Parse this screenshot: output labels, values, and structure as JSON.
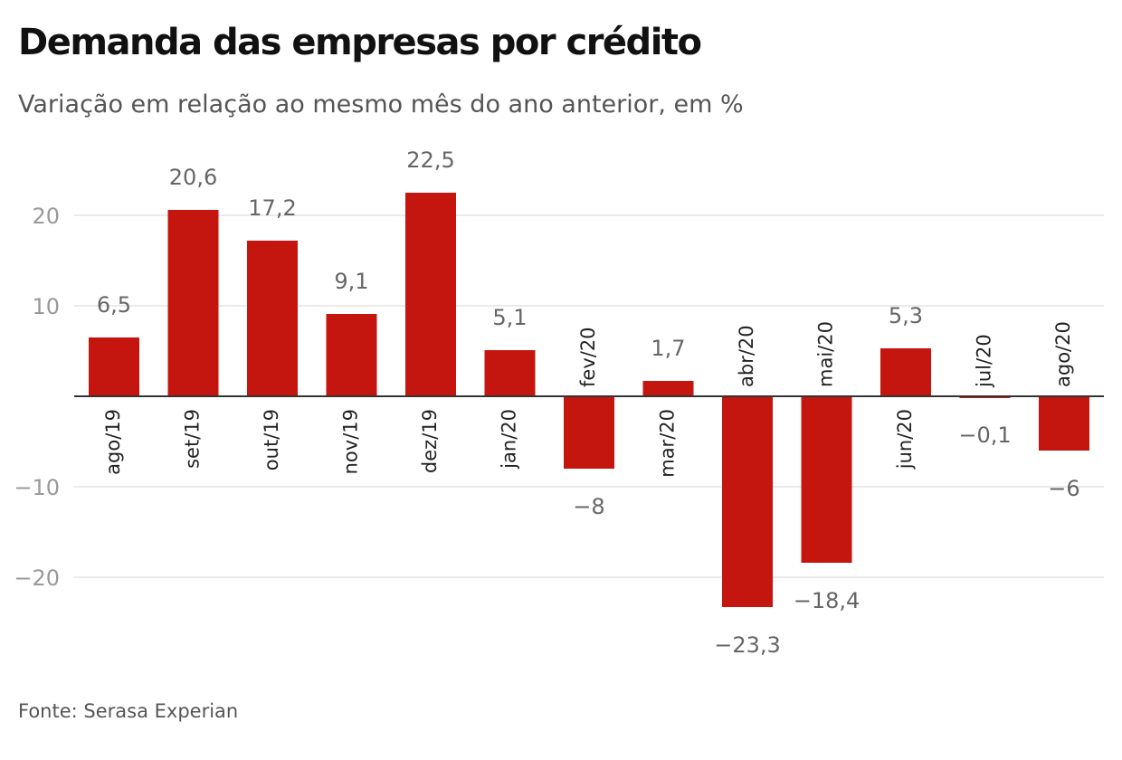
{
  "title": "Demanda das empresas por crédito",
  "subtitle": "Variação em relação ao mesmo mês do ano anterior, em %",
  "source": "Fonte: Serasa Experian",
  "colors": {
    "bar": "#c4160f",
    "grid": "#e3e3e3",
    "zero_line": "#333333"
  },
  "chart_data": {
    "type": "bar",
    "categories": [
      "ago/19",
      "set/19",
      "out/19",
      "nov/19",
      "dez/19",
      "jan/20",
      "fev/20",
      "mar/20",
      "abr/20",
      "mai/20",
      "jun/20",
      "jul/20",
      "ago/20"
    ],
    "values": [
      6.5,
      20.6,
      17.2,
      9.1,
      22.5,
      5.1,
      -8,
      1.7,
      -23.3,
      -18.4,
      5.3,
      -0.1,
      -6
    ],
    "value_labels": [
      "6,5",
      "20,6",
      "17,2",
      "9,1",
      "22,5",
      "5,1",
      "−8",
      "1,7",
      "−23,3",
      "−18,4",
      "5,3",
      "−0,1",
      "−6"
    ],
    "yticks": [
      20,
      10,
      -10,
      -20
    ],
    "ytick_labels": [
      "20",
      "10",
      "−10",
      "−20"
    ],
    "ylim": [
      -28,
      26
    ],
    "grid": true,
    "legend": "none"
  }
}
